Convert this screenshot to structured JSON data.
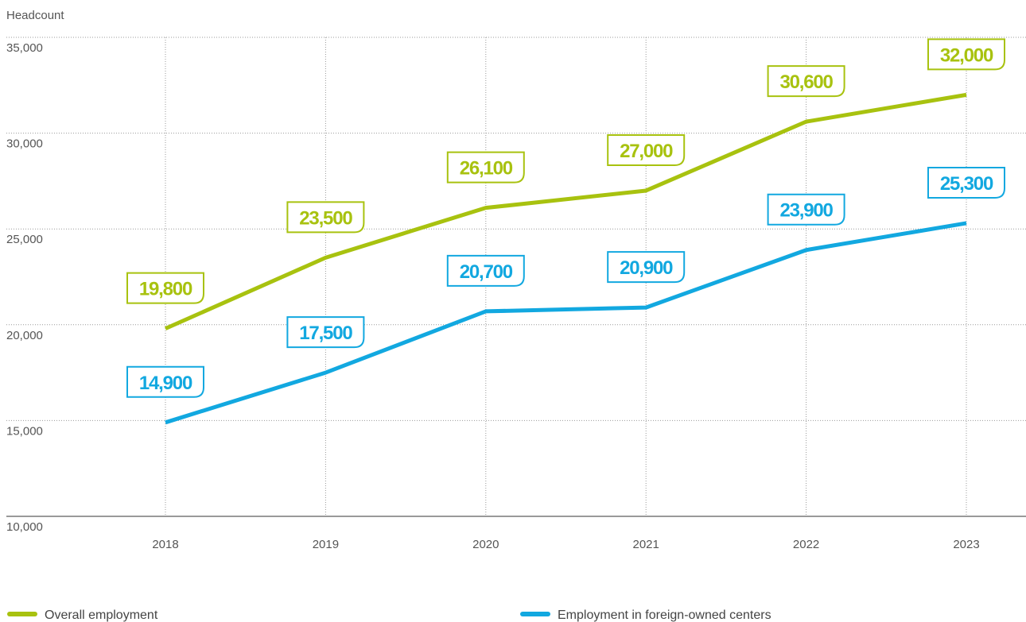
{
  "chart_data": {
    "type": "line",
    "y_axis_label": "Headcount",
    "categories": [
      "2018",
      "2019",
      "2020",
      "2021",
      "2022",
      "2023"
    ],
    "series": [
      {
        "name": "Overall employment",
        "color": "#a8c20f",
        "values": [
          19800,
          23500,
          26100,
          27000,
          30600,
          32000
        ],
        "value_labels": [
          "19,800",
          "23,500",
          "26,100",
          "27,000",
          "30,600",
          "32,000"
        ]
      },
      {
        "name": "Employment in foreign-owned centers",
        "color": "#12a8e0",
        "values": [
          14900,
          17500,
          20700,
          20900,
          23900,
          25300
        ],
        "value_labels": [
          "14,900",
          "17,500",
          "20,700",
          "20,900",
          "23,900",
          "25,300"
        ]
      }
    ],
    "ylim": [
      10000,
      35000
    ],
    "yticks": [
      {
        "value": 10000,
        "label": "10,000"
      },
      {
        "value": 15000,
        "label": "15,000"
      },
      {
        "value": 20000,
        "label": "20,000"
      },
      {
        "value": 25000,
        "label": "25,000"
      },
      {
        "value": 30000,
        "label": "30,000"
      },
      {
        "value": 35000,
        "label": "35,000"
      }
    ],
    "grid": true,
    "legend": "bottom"
  }
}
